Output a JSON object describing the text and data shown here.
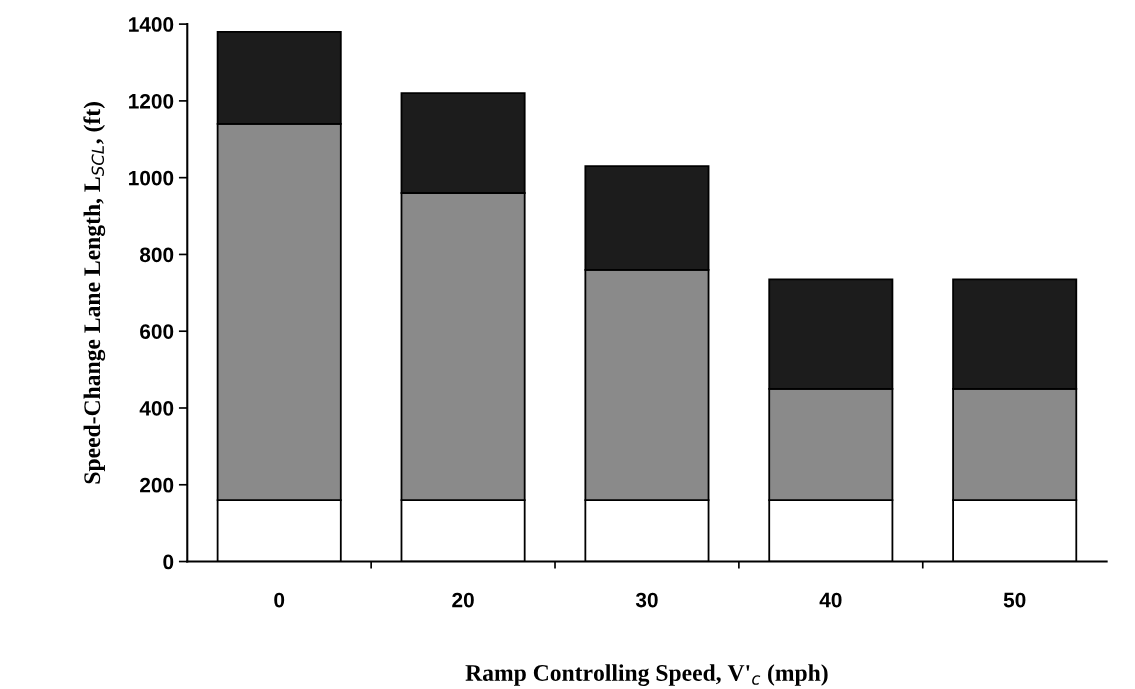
{
  "chart_data": {
    "type": "bar",
    "stacked": true,
    "xlabel": "Ramp Controlling Speed, V'$_{c}$ (mph)",
    "ylabel": "Speed-Change Lane Length, L$_{SCL}$, (ft)",
    "categories": [
      "0",
      "20",
      "30",
      "40",
      "50"
    ],
    "series": [
      {
        "color": "#ffffff",
        "values": [
          160,
          160,
          160,
          160,
          160
        ]
      },
      {
        "color": "#8a8a8a",
        "values": [
          980,
          800,
          600,
          290,
          290
        ]
      },
      {
        "color": "#1c1c1c",
        "values": [
          240,
          260,
          270,
          285,
          285
        ]
      }
    ],
    "ylim": [
      0,
      1400
    ],
    "yticks": [
      0,
      200,
      400,
      600,
      800,
      1000,
      1200,
      1400
    ],
    "grid": false,
    "legend": false
  }
}
